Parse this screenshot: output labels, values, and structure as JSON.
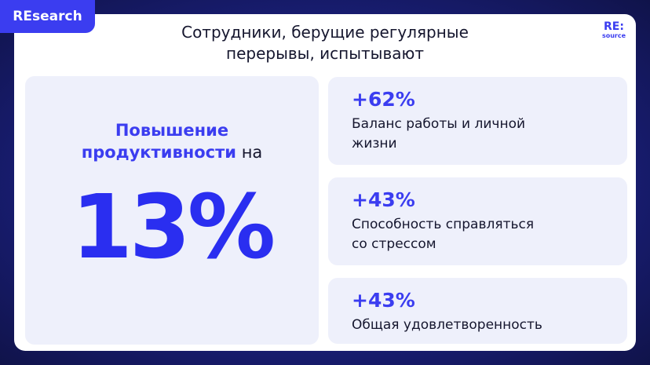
{
  "header": {
    "badge": "REsearch",
    "title_lines": [
      "Сотрудники, берущие регулярные",
      "перерывы, испытывают"
    ],
    "logo_top": "RE:",
    "logo_bottom": "source"
  },
  "highlight": {
    "accent_line1": "Повышение",
    "accent_line2": "продуктивности",
    "plain": "на",
    "value": "13%"
  },
  "stats": [
    {
      "value": "+62%",
      "label_lines": [
        "Баланс работы и личной",
        "жизни"
      ]
    },
    {
      "value": "+43%",
      "label_lines": [
        "Способность справляться",
        "со стрессом"
      ]
    },
    {
      "value": "+43%",
      "label_lines": [
        "Общая удовлетворенность"
      ]
    }
  ]
}
